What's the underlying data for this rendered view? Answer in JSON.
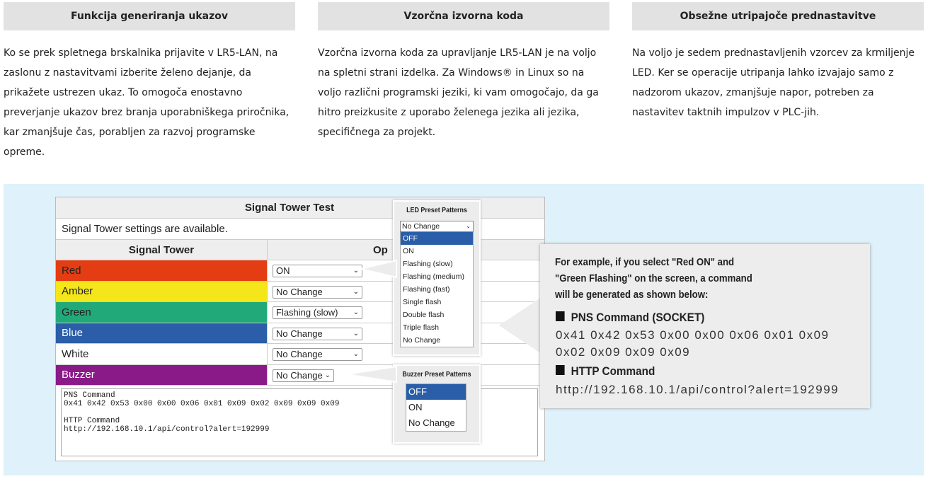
{
  "columns": [
    {
      "title": "Funkcija generiranja ukazov",
      "text": "Ko se prek spletnega brskalnika prijavite v LR5-LAN, na zaslonu z nastavitvami izberite želeno dejanje, da prikažete ustrezen ukaz. To omogoča enostavno preverjanje ukazov brez branja uporabniškega priročnika, kar zmanjšuje čas, porabljen za razvoj programske opreme."
    },
    {
      "title": "Vzorčna izvorna koda",
      "text": "Vzorčna izvorna koda za upravljanje LR5-LAN je na voljo na spletni strani izdelka. Za Windows® in Linux so na voljo različni programski jeziki, ki vam omogočajo, da ga hitro preizkusite z uporabo želenega jezika ali jezika, specifičnega za projekt."
    },
    {
      "title": "Obsežne utripajoče prednastavitve",
      "text": "Na voljo je sedem prednastavljenih vzorcev za krmiljenje LED. Ker se operacije utripanja lahko izvajajo samo z nadzorom ukazov, zmanjšuje napor, potreben za nastavitev taktnih impulzov v PLC-jih."
    }
  ],
  "screen": {
    "title": "Signal Tower Test",
    "subtitle": "Signal Tower settings are available.",
    "col_signal": "Signal Tower",
    "col_op": "Op",
    "rows": [
      {
        "label": "Red",
        "value": "ON",
        "color": "#e43d13",
        "fg": "#222"
      },
      {
        "label": "Amber",
        "value": "No Change",
        "color": "#f4e61a",
        "fg": "#222"
      },
      {
        "label": "Green",
        "value": "Flashing (slow)",
        "color": "#22a97a",
        "fg": "#222"
      },
      {
        "label": "Blue",
        "value": "No Change",
        "color": "#2b5da8",
        "fg": "#fff"
      },
      {
        "label": "White",
        "value": "No Change",
        "color": "#ffffff",
        "fg": "#222"
      },
      {
        "label": "Buzzer",
        "value": "No Change",
        "color": "#8a1a88",
        "fg": "#fff"
      }
    ],
    "output": "PNS Command\n0x41 0x42 0x53 0x00 0x00 0x06 0x01 0x09 0x02 0x09 0x09 0x09\n\nHTTP Command\nhttp://192.168.10.1/api/control?alert=192999"
  },
  "led_popup": {
    "title": "LED Preset Patterns",
    "selected": "No Change",
    "options": [
      "OFF",
      "ON",
      "Flashing (slow)",
      "Flashing (medium)",
      "Flashing (fast)",
      "Single flash",
      "Double flash",
      "Triple flash",
      "No Change"
    ]
  },
  "buzzer_popup": {
    "title": "Buzzer Preset Patterns",
    "options": [
      "OFF",
      "ON",
      "No Change"
    ]
  },
  "callout": {
    "intro": [
      "For example, if you select \"Red ON\" and",
      "\"Green Flashing\" on the  screen, a command",
      "will be generated as shown below:"
    ],
    "pns_heading": "PNS Command (SOCKET)",
    "pns_lines": [
      "0x41 0x42 0x53 0x00 0x00 0x06 0x01 0x09",
      "0x02 0x09 0x09 0x09"
    ],
    "http_heading": "HTTP Command",
    "http_value": "http://192.168.10.1/api/control?alert=192999"
  }
}
